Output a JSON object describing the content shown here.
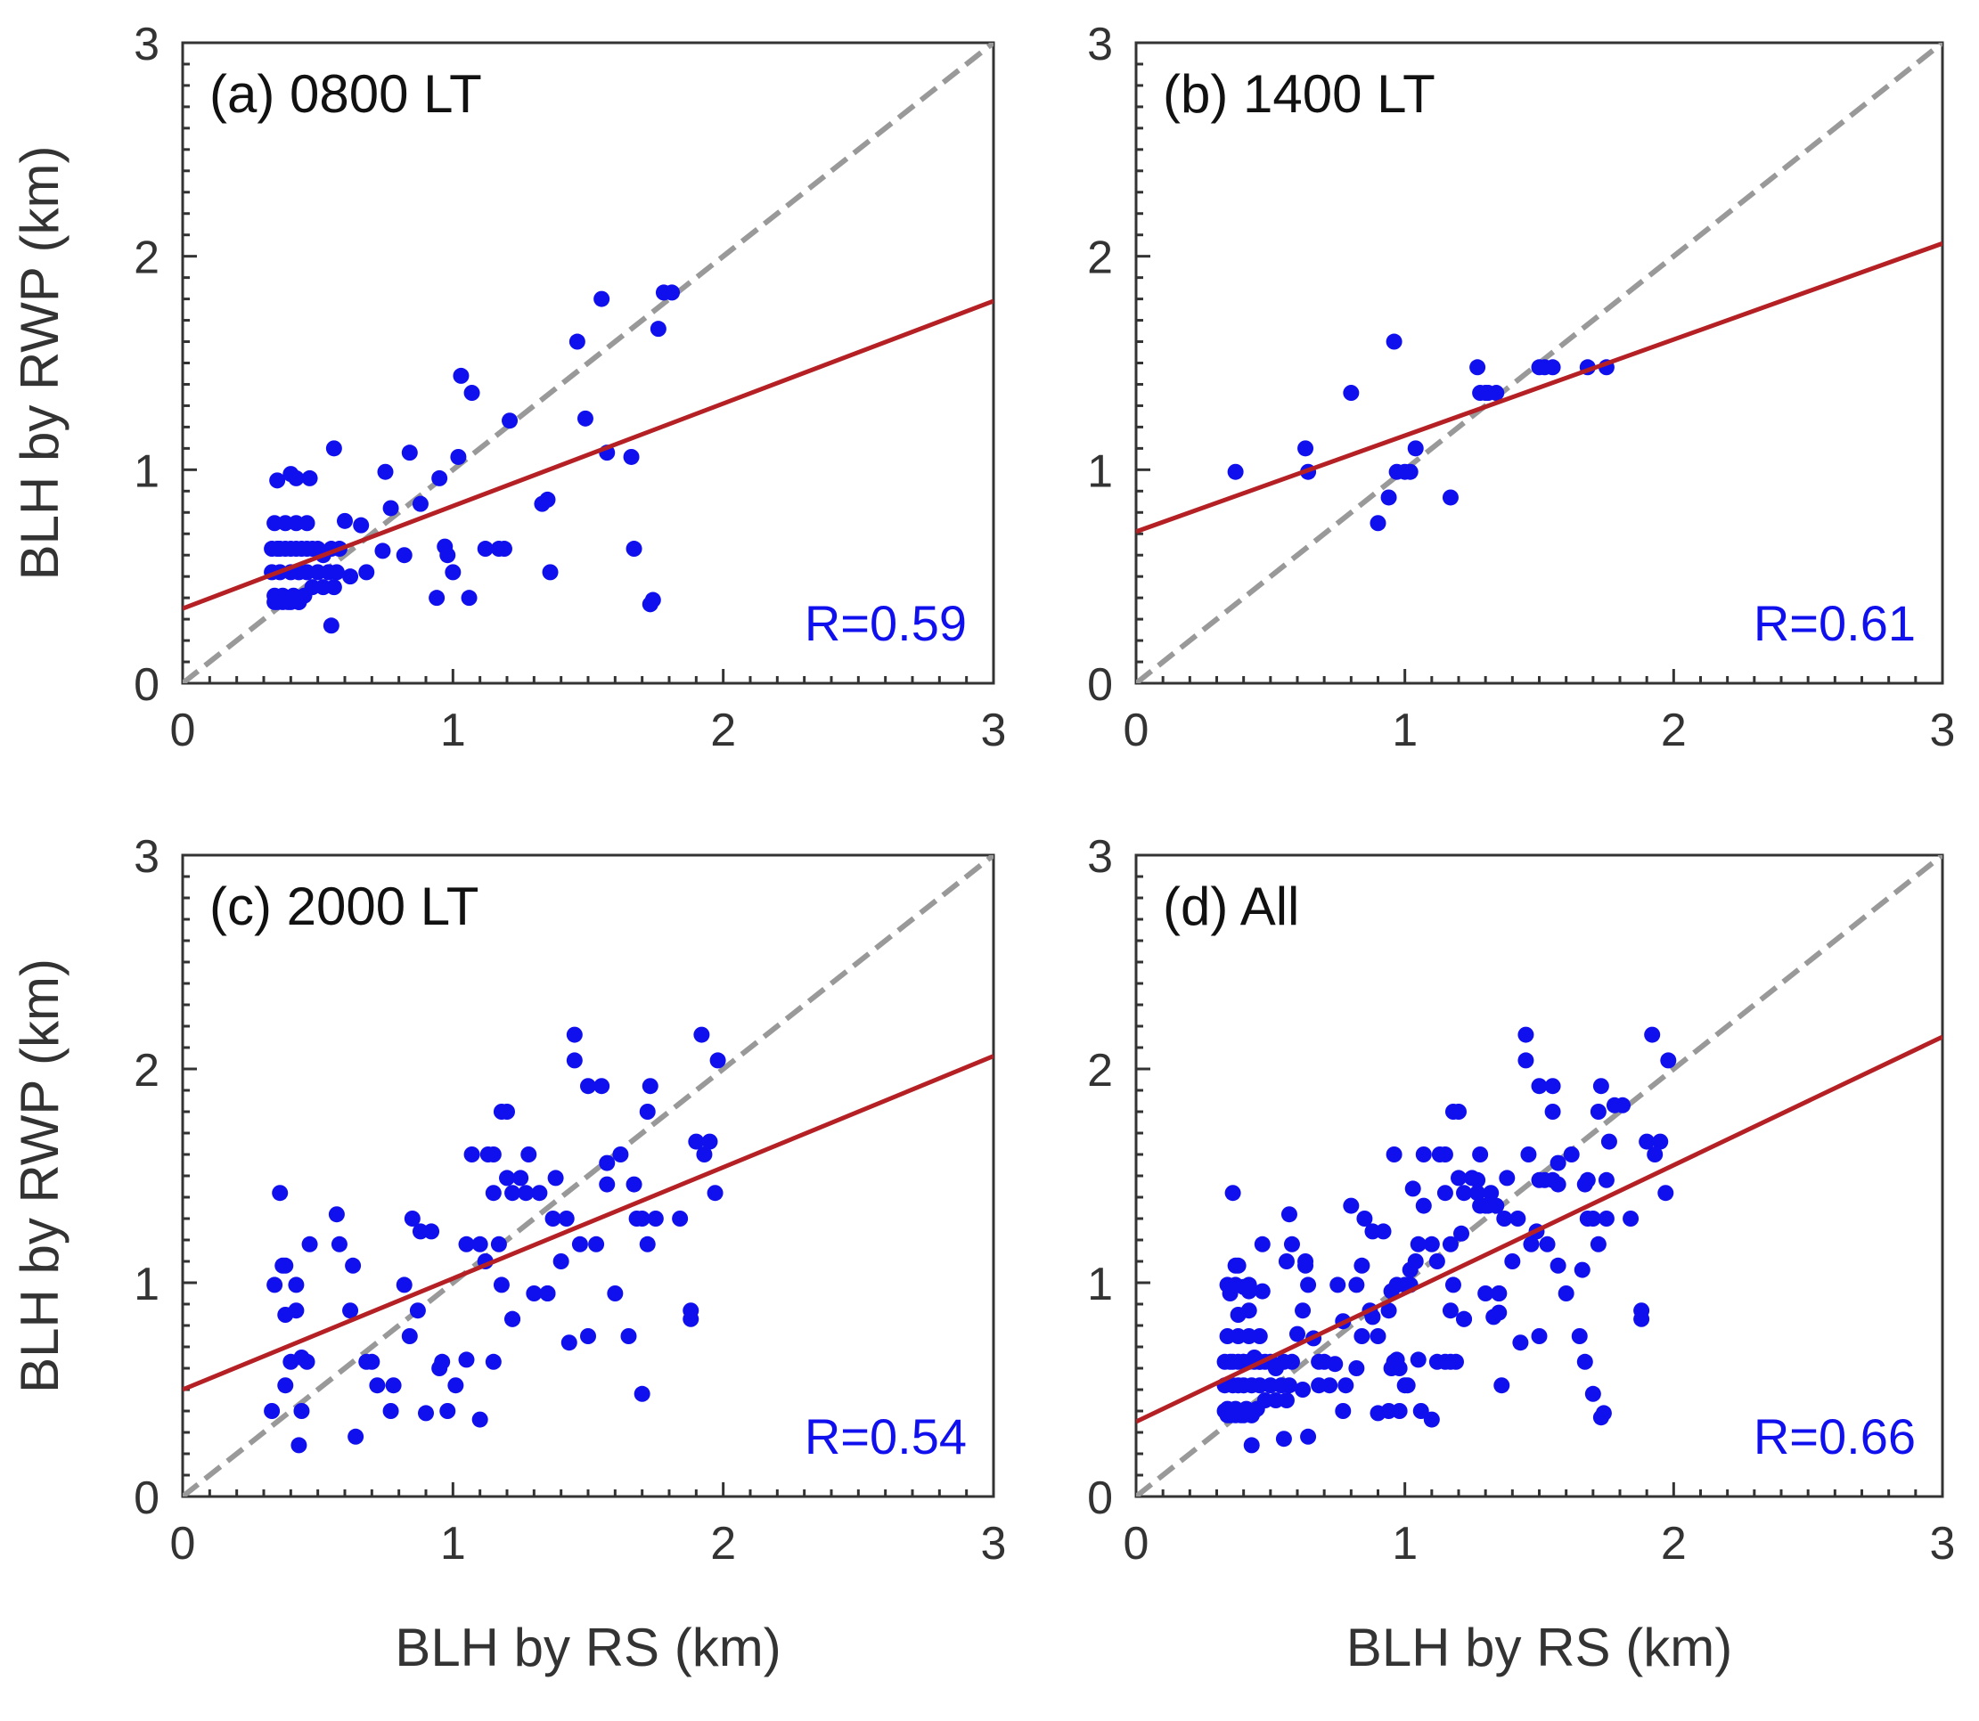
{
  "colors": {
    "points": "#1010ee",
    "fit_line": "#b52025",
    "identity_line": "#999999",
    "axes": "#333333"
  },
  "chart_data": [
    {
      "type": "scatter",
      "panel": "a",
      "title": "(a) 0800 LT",
      "xlabel": "",
      "ylabel": "BLH by RWP (km)",
      "xlim": [
        0,
        3
      ],
      "ylim": [
        0,
        3
      ],
      "xticks": [
        "0",
        "1",
        "2",
        "3"
      ],
      "yticks": [
        "0",
        "1",
        "2",
        "3"
      ],
      "r_label": "R=0.59",
      "fit": {
        "intercept": 0.35,
        "slope": 0.48
      },
      "identity_line": true,
      "x": [
        0.33,
        0.35,
        0.36,
        0.38,
        0.4,
        0.42,
        0.44,
        0.46,
        0.48,
        0.5,
        0.52,
        0.55,
        0.58,
        0.33,
        0.36,
        0.4,
        0.43,
        0.46,
        0.5,
        0.54,
        0.57,
        0.34,
        0.37,
        0.41,
        0.45,
        0.48,
        0.52,
        0.56,
        0.34,
        0.38,
        0.42,
        0.46,
        0.35,
        0.39,
        0.43,
        0.35,
        0.4,
        0.42,
        0.34,
        0.37,
        0.4,
        0.43,
        0.47,
        0.55,
        0.56,
        0.6,
        0.62,
        0.66,
        0.68,
        0.74,
        0.75,
        0.77,
        0.82,
        0.84,
        0.88,
        0.94,
        0.95,
        0.97,
        0.98,
        1.0,
        1.02,
        1.03,
        1.06,
        1.07,
        1.12,
        1.17,
        1.19,
        1.21,
        1.33,
        1.35,
        1.36,
        1.46,
        1.49,
        1.55,
        1.57,
        1.66,
        1.67,
        1.73,
        1.74,
        1.76,
        1.78,
        1.81
      ],
      "y": [
        0.63,
        0.63,
        0.63,
        0.63,
        0.63,
        0.63,
        0.63,
        0.63,
        0.63,
        0.63,
        0.6,
        0.63,
        0.63,
        0.52,
        0.52,
        0.52,
        0.52,
        0.52,
        0.52,
        0.52,
        0.52,
        0.41,
        0.41,
        0.41,
        0.41,
        0.45,
        0.45,
        0.45,
        0.75,
        0.75,
        0.75,
        0.75,
        0.38,
        0.38,
        0.38,
        0.95,
        0.98,
        0.96,
        0.38,
        0.38,
        0.38,
        0.38,
        0.96,
        0.27,
        1.1,
        0.76,
        0.5,
        0.74,
        0.52,
        0.62,
        0.99,
        0.82,
        0.6,
        1.08,
        0.84,
        0.4,
        0.96,
        0.64,
        0.6,
        0.52,
        1.06,
        1.44,
        0.4,
        1.36,
        0.63,
        0.63,
        0.63,
        1.23,
        0.84,
        0.86,
        0.52,
        1.6,
        1.24,
        1.8,
        1.08,
        1.06,
        0.63,
        0.37,
        0.39,
        1.66,
        1.83,
        1.83
      ]
    },
    {
      "type": "scatter",
      "panel": "b",
      "title": "(b) 1400 LT",
      "xlabel": "",
      "ylabel": "",
      "xlim": [
        0,
        3
      ],
      "ylim": [
        0,
        3
      ],
      "xticks": [
        "0",
        "1",
        "2",
        "3"
      ],
      "yticks": [
        "0",
        "1",
        "2",
        "3"
      ],
      "r_label": "R=0.61",
      "fit": {
        "intercept": 0.71,
        "slope": 0.45
      },
      "identity_line": true,
      "x": [
        0.37,
        0.63,
        0.64,
        0.8,
        0.9,
        0.94,
        0.96,
        0.97,
        1.0,
        1.02,
        1.04,
        1.17,
        1.27,
        1.28,
        1.3,
        1.31,
        1.34,
        1.5,
        1.52,
        1.55,
        1.68,
        1.75
      ],
      "y": [
        0.99,
        1.1,
        0.99,
        1.36,
        0.75,
        0.87,
        1.6,
        0.99,
        0.99,
        0.99,
        1.1,
        0.87,
        1.48,
        1.36,
        1.36,
        1.36,
        1.36,
        1.48,
        1.48,
        1.48,
        1.48,
        1.48
      ]
    },
    {
      "type": "scatter",
      "panel": "c",
      "title": "(c) 2000 LT",
      "xlabel": "BLH by RS (km)",
      "ylabel": "BLH by RWP (km)",
      "xlim": [
        0,
        3
      ],
      "ylim": [
        0,
        3
      ],
      "xticks": [
        "0",
        "1",
        "2",
        "3"
      ],
      "yticks": [
        "0",
        "1",
        "2",
        "3"
      ],
      "r_label": "R=0.54",
      "fit": {
        "intercept": 0.5,
        "slope": 0.52
      },
      "identity_line": true,
      "x": [
        0.33,
        0.34,
        0.36,
        0.37,
        0.38,
        0.38,
        0.4,
        0.42,
        0.43,
        0.44,
        0.46,
        0.47,
        0.57,
        0.58,
        0.62,
        0.64,
        0.68,
        0.7,
        0.72,
        0.77,
        0.78,
        0.82,
        0.84,
        0.85,
        0.87,
        0.88,
        0.9,
        0.92,
        0.95,
        0.96,
        0.98,
        1.01,
        1.05,
        1.07,
        1.1,
        1.1,
        1.12,
        1.13,
        1.15,
        1.17,
        1.18,
        1.2,
        1.22,
        1.25,
        1.27,
        1.28,
        1.32,
        1.35,
        1.37,
        1.38,
        1.4,
        1.42,
        1.43,
        1.45,
        1.47,
        1.5,
        1.53,
        1.55,
        1.57,
        1.6,
        1.62,
        1.65,
        1.67,
        1.68,
        1.7,
        1.72,
        1.73,
        1.75,
        1.84,
        1.88,
        1.9,
        1.92,
        1.93,
        1.95,
        1.97,
        1.98,
        1.18,
        1.2,
        1.22,
        1.45,
        1.5,
        1.57,
        1.72,
        1.22,
        1.15,
        1.3,
        1.35,
        0.38,
        0.42,
        0.44,
        1.88,
        0.63,
        1.7,
        1.15,
        1.05
      ],
      "y": [
        0.4,
        0.99,
        1.42,
        1.08,
        0.52,
        0.85,
        0.63,
        0.87,
        0.24,
        0.4,
        0.63,
        1.18,
        1.32,
        1.18,
        0.87,
        0.28,
        0.63,
        0.63,
        0.52,
        0.4,
        0.52,
        0.99,
        0.75,
        1.3,
        0.87,
        1.24,
        0.39,
        1.24,
        0.6,
        0.63,
        0.4,
        0.52,
        0.64,
        1.6,
        1.18,
        0.36,
        1.1,
        1.6,
        1.42,
        1.18,
        0.99,
        1.49,
        1.42,
        1.49,
        1.42,
        1.6,
        1.42,
        0.95,
        1.3,
        1.49,
        1.1,
        1.3,
        0.72,
        2.16,
        1.18,
        1.92,
        1.18,
        1.92,
        1.56,
        0.95,
        1.6,
        0.75,
        1.46,
        1.3,
        1.3,
        1.18,
        1.92,
        1.3,
        1.3,
        0.87,
        1.66,
        2.16,
        1.6,
        1.66,
        1.42,
        2.04,
        1.8,
        1.8,
        0.83,
        2.04,
        0.75,
        1.46,
        1.8,
        0.83,
        0.63,
        0.95,
        0.95,
        1.08,
        0.99,
        0.65,
        0.83,
        1.08,
        0.48,
        1.6,
        1.18
      ]
    },
    {
      "type": "scatter",
      "panel": "d",
      "title": "(d) All",
      "xlabel": "BLH by RS (km)",
      "ylabel": "",
      "xlim": [
        0,
        3
      ],
      "ylim": [
        0,
        3
      ],
      "xticks": [
        "0",
        "1",
        "2",
        "3"
      ],
      "yticks": [
        "0",
        "1",
        "2",
        "3"
      ],
      "r_label": "R=0.66",
      "fit": {
        "intercept": 0.35,
        "slope": 0.6
      },
      "identity_line": true,
      "combined_from_panels": [
        0,
        1,
        2
      ]
    }
  ]
}
